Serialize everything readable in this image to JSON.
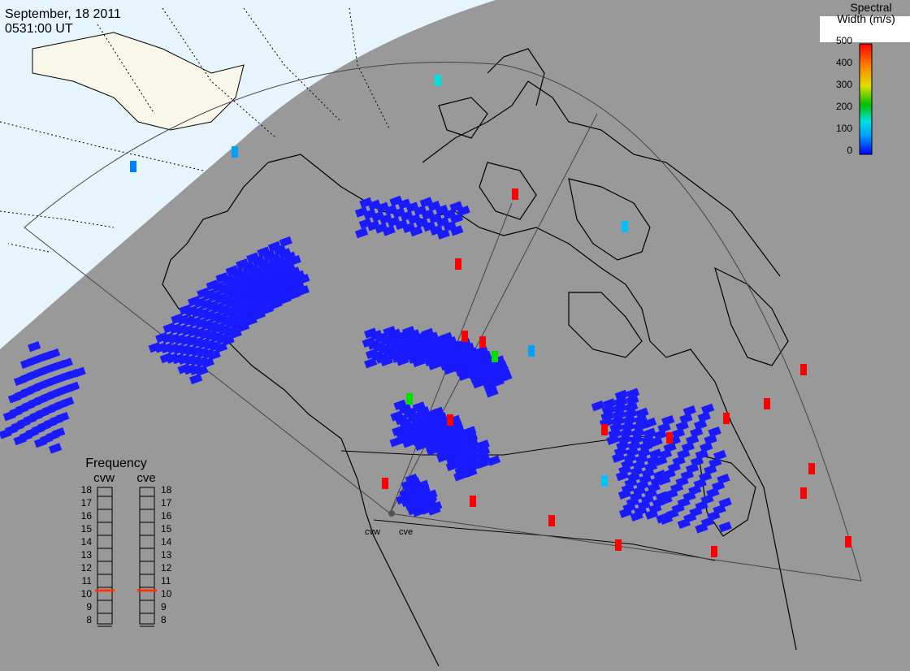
{
  "header": {
    "date": "September, 18 2011",
    "time": "0531:00 UT"
  },
  "colorbar": {
    "title_line1": "Spectral",
    "title_line2": "Width (m/s)",
    "ticks": [
      "500",
      "400",
      "300",
      "200",
      "100",
      "0"
    ],
    "colors": [
      "#0000ff",
      "#00a0ff",
      "#00e0e0",
      "#00c000",
      "#e0e000",
      "#ff8000",
      "#ff0000"
    ]
  },
  "frequency_panel": {
    "title": "Frequency",
    "radars": [
      {
        "name": "cvw",
        "value_mhz": 10.6
      },
      {
        "name": "cve",
        "value_mhz": 10.6
      }
    ],
    "ticks": [
      "18",
      "17",
      "16",
      "15",
      "14",
      "13",
      "12",
      "11",
      "10",
      "9",
      "8"
    ]
  },
  "radar_labels": [
    "cvw",
    "cve"
  ],
  "colors": {
    "night": "#999999",
    "day_ocean": "#e6f4fc",
    "day_land": "#f8f7ea",
    "scatter_low": "#1a1aff",
    "scatter_high": "#ff0000"
  }
}
